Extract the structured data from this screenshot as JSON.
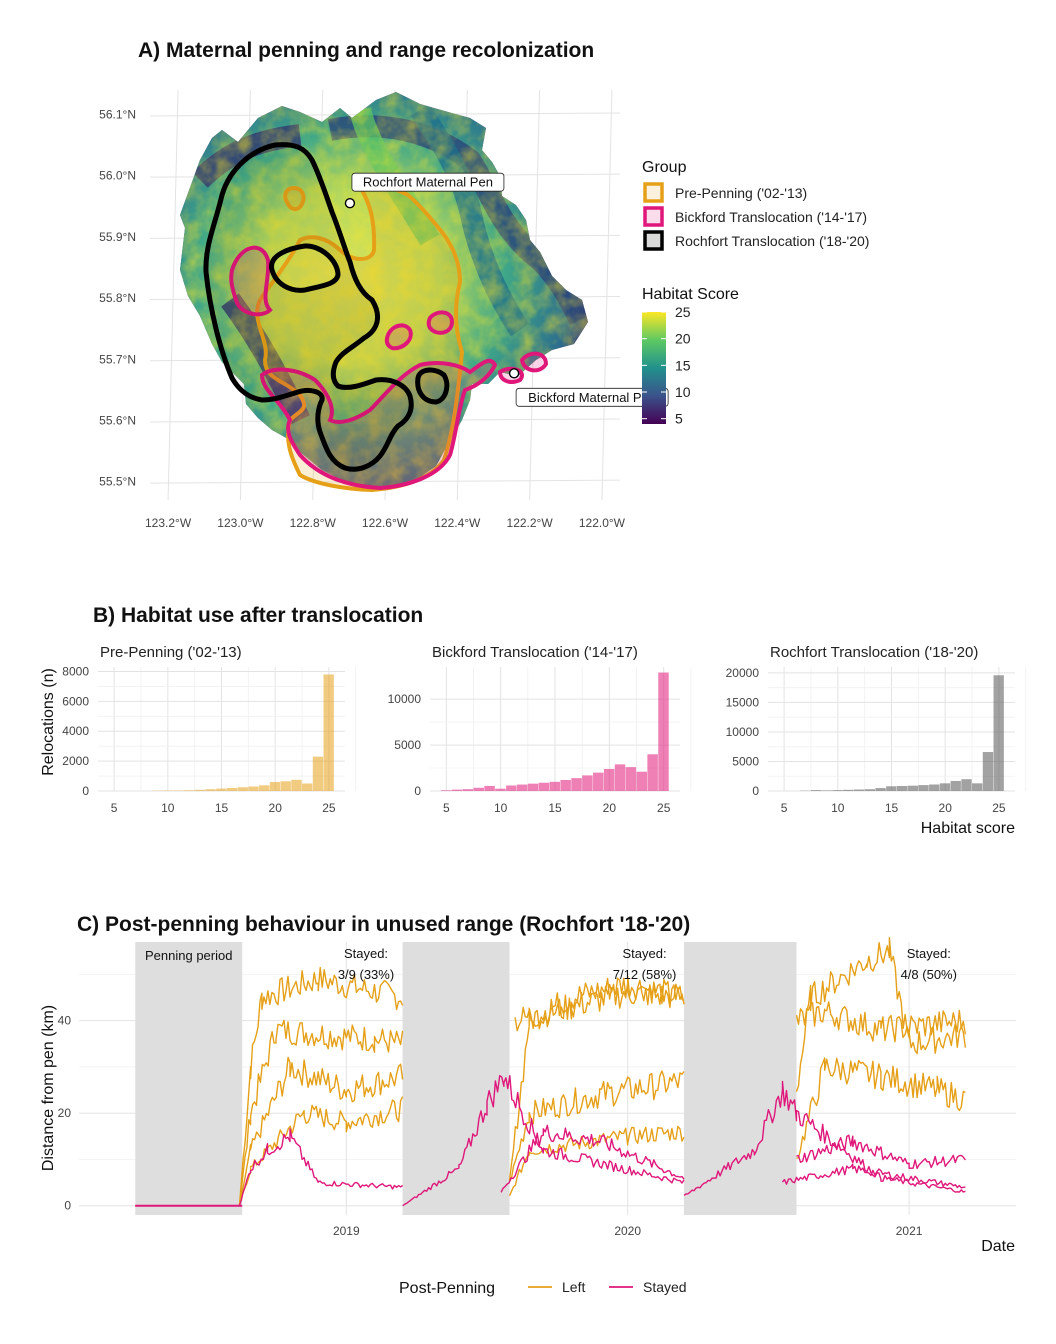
{
  "chart_data": [
    {
      "type": "map",
      "title": "A) Maternal penning and range recolonization",
      "x_ticks": [
        "123.2°W",
        "123.0°W",
        "122.8°W",
        "122.6°W",
        "122.4°W",
        "122.2°W",
        "122.0°W"
      ],
      "y_ticks": [
        "55.5°N",
        "55.6°N",
        "55.7°N",
        "55.8°N",
        "55.9°N",
        "56.0°N",
        "56.1°N"
      ],
      "xlim": [
        -123.25,
        -121.95
      ],
      "ylim": [
        55.47,
        56.14
      ],
      "labels": [
        {
          "text": "Rochfort Maternal Pen",
          "lon": -122.78,
          "lat": 55.955
        },
        {
          "text": "Bickford Maternal Pen",
          "lon": -122.395,
          "lat": 55.677
        }
      ],
      "group_legend_title": "Group",
      "groups": [
        {
          "name": "Pre-Penning ('02-'13)",
          "color": "#e6a018"
        },
        {
          "name": "Bickford Translocation ('14-'17)",
          "color": "#e0177a"
        },
        {
          "name": "Rochfort Translocation ('18-'20)",
          "color": "#000000"
        }
      ],
      "habitat_legend_title": "Habitat Score",
      "habitat_ticks": [
        25,
        20,
        15,
        10,
        5
      ],
      "habitat_range": [
        4,
        25
      ]
    },
    {
      "type": "bar",
      "title": "B) Habitat use after translocation",
      "ylabel": "Relocations (n)",
      "xlabel": "Habitat score",
      "x_ticks": [
        5,
        10,
        15,
        20,
        25
      ],
      "panels": [
        {
          "name": "Pre-Penning ('02-'13)",
          "color": "#e6a018",
          "ylim": [
            0,
            8300
          ],
          "y_ticks": [
            0,
            2000,
            4000,
            6000,
            8000
          ],
          "bins": [
            9,
            10,
            11,
            12,
            13,
            14,
            15,
            16,
            17,
            18,
            19,
            20,
            21,
            22,
            23,
            24,
            25
          ],
          "values": [
            20,
            30,
            30,
            50,
            80,
            120,
            160,
            200,
            250,
            300,
            380,
            600,
            650,
            750,
            500,
            2300,
            7800
          ]
        },
        {
          "name": "Bickford Translocation ('14-'17)",
          "color": "#e0177a",
          "ylim": [
            0,
            13500
          ],
          "y_ticks": [
            0,
            5000,
            10000
          ],
          "bins": [
            5,
            6,
            7,
            8,
            9,
            10,
            11,
            12,
            13,
            14,
            15,
            16,
            17,
            18,
            19,
            20,
            21,
            22,
            23,
            24,
            25
          ],
          "values": [
            80,
            150,
            200,
            350,
            550,
            250,
            600,
            700,
            800,
            900,
            1000,
            1200,
            1400,
            1700,
            2000,
            2400,
            2900,
            2600,
            2100,
            4000,
            12900
          ]
        },
        {
          "name": "Rochfort Translocation ('18-'20)",
          "color": "#555555",
          "ylim": [
            0,
            21000
          ],
          "y_ticks": [
            0,
            5000,
            10000,
            15000,
            20000
          ],
          "bins": [
            7,
            8,
            9,
            10,
            11,
            12,
            13,
            14,
            15,
            16,
            17,
            18,
            19,
            20,
            21,
            22,
            23,
            24,
            25
          ],
          "values": [
            50,
            150,
            100,
            150,
            200,
            250,
            300,
            500,
            800,
            850,
            900,
            1000,
            1100,
            1300,
            1700,
            2000,
            1300,
            6600,
            19600
          ]
        }
      ]
    },
    {
      "type": "line",
      "title": "C) Post-penning behaviour in unused range (Rochfort '18-'20)",
      "ylabel": "Distance from pen (km)",
      "xlabel": "Date",
      "xlim": [
        2018.05,
        2021.38
      ],
      "ylim": [
        -2,
        57
      ],
      "x_ticks": [
        "2019",
        "2020",
        "2021"
      ],
      "y_ticks": [
        0,
        20,
        40
      ],
      "penning_label": "Penning period",
      "penning_periods": [
        [
          2018.25,
          2018.63
        ],
        [
          2019.2,
          2019.58
        ],
        [
          2020.2,
          2020.6
        ]
      ],
      "annotations": [
        {
          "x": 2019.07,
          "text1": "Stayed:",
          "text2": "3/9 (33%)"
        },
        {
          "x": 2020.06,
          "text1": "Stayed:",
          "text2": "7/12 (58%)"
        },
        {
          "x": 2021.07,
          "text1": "Stayed:",
          "text2": "4/8 (50%)"
        }
      ],
      "legend_title": "Post-Penning",
      "series": [
        {
          "name": "Left",
          "color": "#e6a018"
        },
        {
          "name": "Stayed",
          "color": "#e0177a"
        }
      ],
      "trajectories": [
        {
          "group": "Left",
          "t": [
            2018.25,
            2018.62,
            2018.66,
            2018.7,
            2018.9,
            2019.2
          ],
          "y": [
            0,
            0,
            30,
            45,
            49,
            45
          ]
        },
        {
          "group": "Left",
          "t": [
            2018.25,
            2018.62,
            2018.66,
            2018.75,
            2019.1,
            2019.2
          ],
          "y": [
            0,
            0,
            20,
            38,
            36,
            35
          ]
        },
        {
          "group": "Left",
          "t": [
            2018.25,
            2018.62,
            2018.66,
            2018.8,
            2019.0,
            2019.2
          ],
          "y": [
            0,
            0,
            12,
            30,
            25,
            28
          ]
        },
        {
          "group": "Left",
          "t": [
            2018.25,
            2018.62,
            2018.66,
            2018.85,
            2019.0,
            2019.2
          ],
          "y": [
            0,
            0,
            8,
            20,
            18,
            21
          ]
        },
        {
          "group": "Left",
          "t": [
            2019.58,
            2019.65,
            2019.8,
            2020.0,
            2020.2
          ],
          "y": [
            5,
            40,
            45,
            48,
            45
          ]
        },
        {
          "group": "Left",
          "t": [
            2019.58,
            2019.65,
            2019.9,
            2020.2
          ],
          "y": [
            5,
            20,
            24,
            27
          ]
        },
        {
          "group": "Left",
          "t": [
            2019.58,
            2019.65,
            2020.0,
            2020.2
          ],
          "y": [
            2,
            12,
            15,
            16
          ]
        },
        {
          "group": "Left",
          "t": [
            2019.6,
            2019.8,
            2020.0,
            2020.2
          ],
          "y": [
            40,
            43,
            46,
            45
          ]
        },
        {
          "group": "Left",
          "t": [
            2020.6,
            2020.65,
            2020.85,
            2020.93,
            2021.0,
            2021.2
          ],
          "y": [
            25,
            45,
            53,
            55,
            35,
            37
          ]
        },
        {
          "group": "Left",
          "t": [
            2020.6,
            2020.7,
            2020.9,
            2021.1,
            2021.2
          ],
          "y": [
            10,
            30,
            28,
            25,
            23
          ]
        },
        {
          "group": "Left",
          "t": [
            2020.6,
            2020.7,
            2020.9,
            2021.2
          ],
          "y": [
            40,
            42,
            38,
            40
          ]
        },
        {
          "group": "Stayed",
          "t": [
            2018.25,
            2018.62,
            2018.66,
            2018.72,
            2018.8,
            2018.9,
            2019.2
          ],
          "y": [
            0,
            0,
            8,
            12,
            15,
            5,
            4
          ]
        },
        {
          "group": "Stayed",
          "t": [
            2019.2,
            2019.4,
            2019.5,
            2019.56,
            2019.7,
            2020.2
          ],
          "y": [
            0,
            8,
            22,
            28,
            12,
            5
          ]
        },
        {
          "group": "Stayed",
          "t": [
            2019.55,
            2019.7,
            2019.9,
            2020.2
          ],
          "y": [
            3,
            16,
            14,
            6
          ]
        },
        {
          "group": "Stayed",
          "t": [
            2020.2,
            2020.45,
            2020.55,
            2020.6,
            2020.9,
            2021.2
          ],
          "y": [
            2,
            12,
            25,
            20,
            6,
            3
          ]
        },
        {
          "group": "Stayed",
          "t": [
            2020.6,
            2020.8,
            2021.0,
            2021.2
          ],
          "y": [
            10,
            14,
            9,
            10
          ]
        },
        {
          "group": "Stayed",
          "t": [
            2020.55,
            2020.8,
            2021.2
          ],
          "y": [
            5,
            8,
            4
          ]
        }
      ]
    }
  ]
}
